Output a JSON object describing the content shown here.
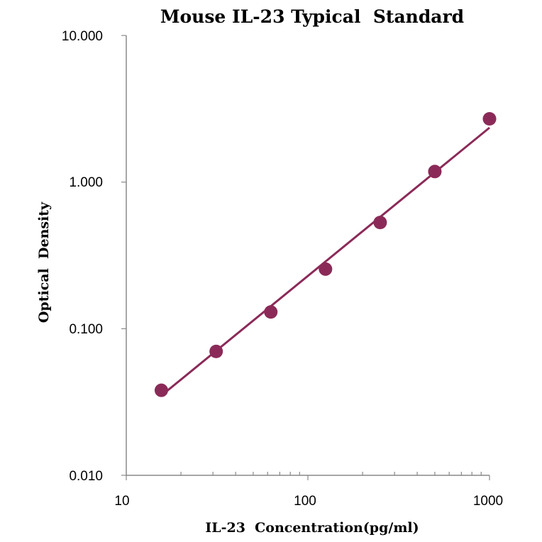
{
  "chart_data": {
    "type": "scatter",
    "title": "Mouse IL-23 Typical  Standard",
    "xlabel": "IL-23  Concentration(pg/ml)",
    "ylabel": "Optical  Density",
    "x_scale": "log",
    "y_scale": "log",
    "xlim": [
      10,
      1000
    ],
    "ylim": [
      0.01,
      10
    ],
    "x_ticks": [
      "10",
      "100",
      "1000"
    ],
    "y_ticks": [
      "0.010",
      "0.100",
      "1.000",
      "10.000"
    ],
    "grid": false,
    "legend": "none",
    "colors": {
      "series": "#8b2a58",
      "axis": "#888888"
    },
    "series": [
      {
        "x": [
          15.6,
          31.25,
          62.5,
          125,
          250,
          500,
          1000
        ],
        "y": [
          0.038,
          0.07,
          0.13,
          0.255,
          0.53,
          1.18,
          2.7
        ]
      }
    ],
    "fit_line": {
      "x": [
        15.6,
        1000
      ],
      "y": [
        0.035,
        2.35
      ]
    }
  }
}
